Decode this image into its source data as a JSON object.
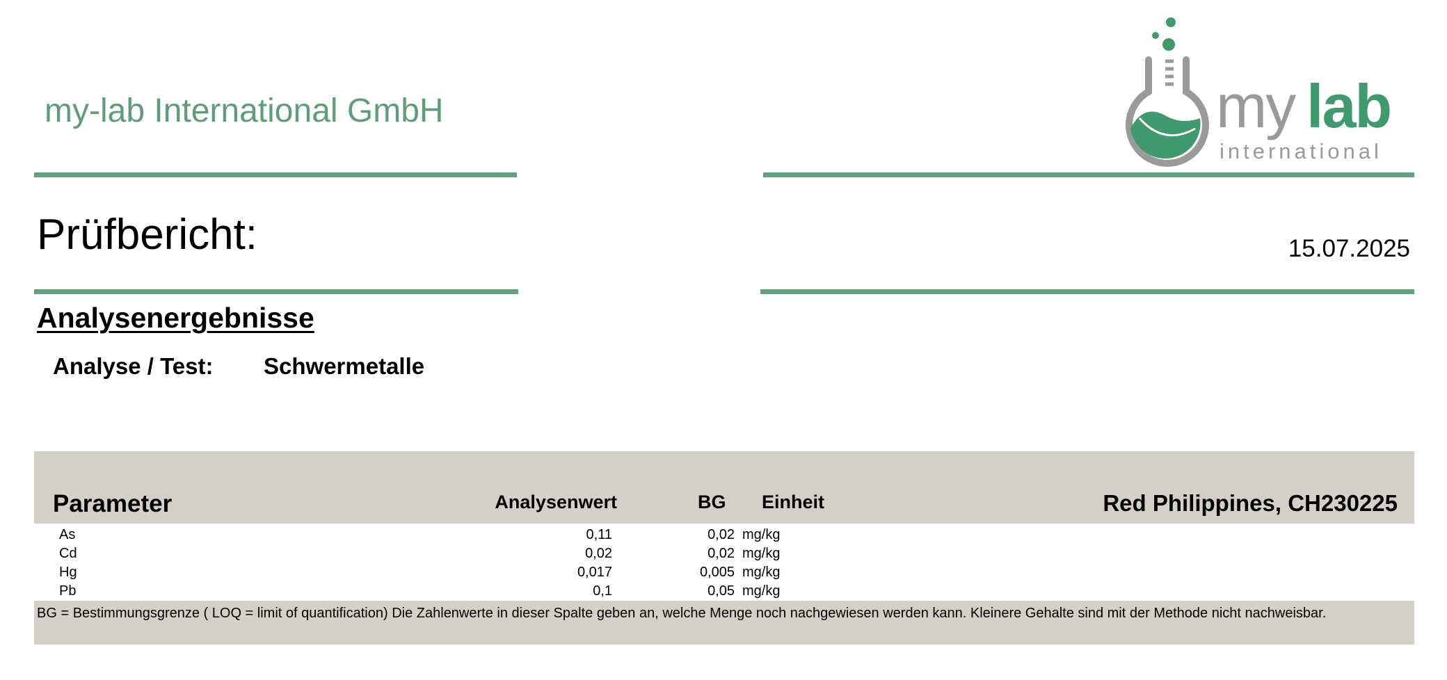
{
  "header": {
    "company": "my-lab International GmbH",
    "logo": {
      "text_main_light": "my",
      "text_main_bold": "lab",
      "text_sub": "international",
      "icon": "flask-leaf-icon"
    },
    "colors": {
      "accent": "#65a07b",
      "table_bg": "#d3d0ca",
      "logo_gray": "#9a9a9a",
      "logo_green": "#3f9a6d"
    }
  },
  "report": {
    "title": "Prüfbericht:",
    "date": "15.07.2025",
    "section": "Analysenergebnisse",
    "analysis_label": "Analyse / Test:",
    "analysis_value": "Schwermetalle"
  },
  "table": {
    "headers": {
      "parameter": "Parameter",
      "value": "Analysenwert",
      "bg": "BG",
      "unit": "Einheit",
      "sample": "Red Philippines, CH230225"
    },
    "rows": [
      {
        "parameter": "As",
        "value": "0,11",
        "bg": "0,02",
        "unit": "mg/kg"
      },
      {
        "parameter": "Cd",
        "value": "0,02",
        "bg": "0,02",
        "unit": "mg/kg"
      },
      {
        "parameter": "Hg",
        "value": "0,017",
        "bg": "0,005",
        "unit": "mg/kg"
      },
      {
        "parameter": "Pb",
        "value": "0,1",
        "bg": "0,05",
        "unit": "mg/kg"
      }
    ],
    "footnote": "BG = Bestimmungsgrenze ( LOQ = limit of quantification) Die Zahlenwerte in dieser Spalte geben an, welche Menge noch nachgewiesen werden kann. Kleinere Gehalte sind mit der Methode nicht nachweisbar."
  }
}
